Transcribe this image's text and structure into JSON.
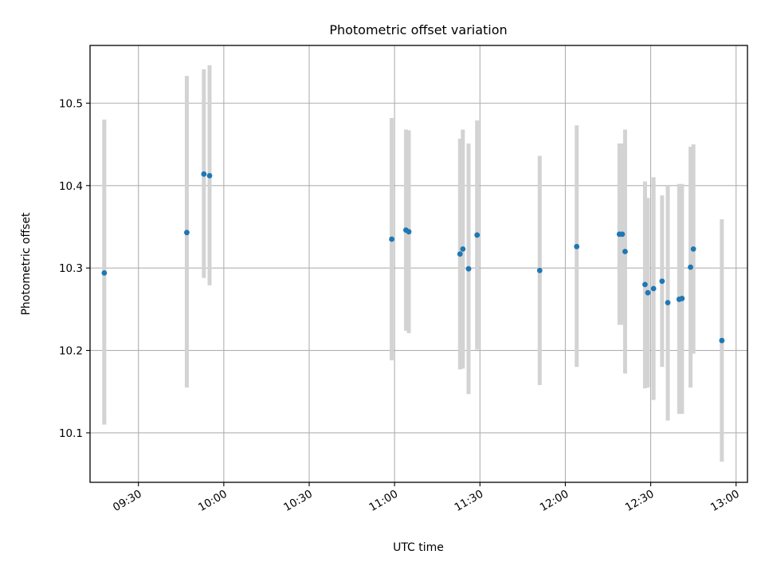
{
  "chart_data": {
    "type": "scatter",
    "title": "Photometric offset variation",
    "xlabel": "UTC time",
    "ylabel": "Photometric offset",
    "x_ticks": [
      "09:30",
      "10:00",
      "10:30",
      "11:00",
      "11:30",
      "12:00",
      "12:30",
      "13:00"
    ],
    "y_ticks": [
      10.1,
      10.2,
      10.3,
      10.4,
      10.5
    ],
    "xlim": [
      "09:13",
      "13:04"
    ],
    "ylim": [
      10.04,
      10.57
    ],
    "grid": true,
    "colors": {
      "point": "#1f77b4",
      "errorbar": "#d3d3d3",
      "grid": "#b0b0b0"
    },
    "series": [
      {
        "points": [
          {
            "x": "09:18",
            "y": 10.294,
            "err_low": 10.11,
            "err_high": 10.48
          },
          {
            "x": "09:47",
            "y": 10.343,
            "err_low": 10.155,
            "err_high": 10.533
          },
          {
            "x": "09:53",
            "y": 10.414,
            "err_low": 10.288,
            "err_high": 10.541
          },
          {
            "x": "09:55",
            "y": 10.412,
            "err_low": 10.279,
            "err_high": 10.546
          },
          {
            "x": "10:59",
            "y": 10.335,
            "err_low": 10.188,
            "err_high": 10.482
          },
          {
            "x": "11:04",
            "y": 10.346,
            "err_low": 10.224,
            "err_high": 10.468
          },
          {
            "x": "11:05",
            "y": 10.344,
            "err_low": 10.221,
            "err_high": 10.467
          },
          {
            "x": "11:23",
            "y": 10.317,
            "err_low": 10.177,
            "err_high": 10.457
          },
          {
            "x": "11:24",
            "y": 10.323,
            "err_low": 10.178,
            "err_high": 10.468
          },
          {
            "x": "11:26",
            "y": 10.299,
            "err_low": 10.147,
            "err_high": 10.451
          },
          {
            "x": "11:29",
            "y": 10.34,
            "err_low": 10.201,
            "err_high": 10.479
          },
          {
            "x": "11:51",
            "y": 10.297,
            "err_low": 10.158,
            "err_high": 10.436
          },
          {
            "x": "12:04",
            "y": 10.326,
            "err_low": 10.18,
            "err_high": 10.473
          },
          {
            "x": "12:19",
            "y": 10.341,
            "err_low": 10.231,
            "err_high": 10.451
          },
          {
            "x": "12:20",
            "y": 10.341,
            "err_low": 10.231,
            "err_high": 10.451
          },
          {
            "x": "12:21",
            "y": 10.32,
            "err_low": 10.172,
            "err_high": 10.468
          },
          {
            "x": "12:28",
            "y": 10.28,
            "err_low": 10.154,
            "err_high": 10.405
          },
          {
            "x": "12:29",
            "y": 10.27,
            "err_low": 10.155,
            "err_high": 10.385
          },
          {
            "x": "12:31",
            "y": 10.275,
            "err_low": 10.14,
            "err_high": 10.41
          },
          {
            "x": "12:34",
            "y": 10.284,
            "err_low": 10.18,
            "err_high": 10.388
          },
          {
            "x": "12:36",
            "y": 10.258,
            "err_low": 10.115,
            "err_high": 10.4
          },
          {
            "x": "12:40",
            "y": 10.262,
            "err_low": 10.123,
            "err_high": 10.402
          },
          {
            "x": "12:41",
            "y": 10.263,
            "err_low": 10.123,
            "err_high": 10.402
          },
          {
            "x": "12:44",
            "y": 10.301,
            "err_low": 10.155,
            "err_high": 10.447
          },
          {
            "x": "12:45",
            "y": 10.323,
            "err_low": 10.196,
            "err_high": 10.45
          },
          {
            "x": "12:55",
            "y": 10.212,
            "err_low": 10.065,
            "err_high": 10.359
          }
        ]
      }
    ]
  }
}
